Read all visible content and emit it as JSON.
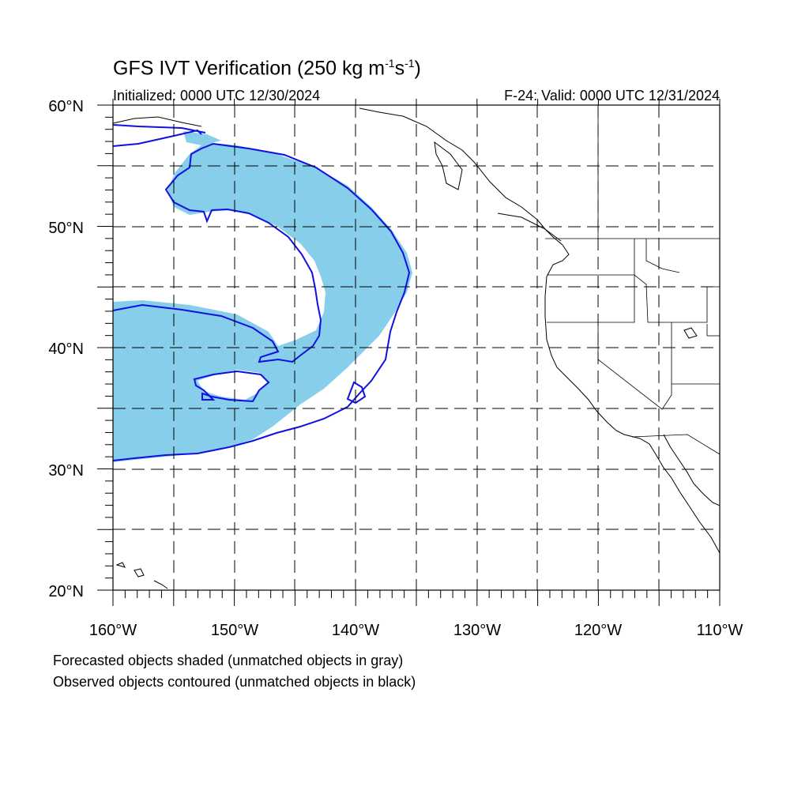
{
  "title": {
    "main": "GFS IVT Verification (250 kg m",
    "exp1": "-1",
    "mid": "s",
    "exp2": "-1",
    "end": ")"
  },
  "initialized": "Initialized: 0000 UTC 12/30/2024",
  "valid": "F-24: Valid: 0000 UTC 12/31/2024",
  "captions": [
    "Forecasted objects shaded (unmatched objects in gray)",
    "Observed objects contoured (unmatched objects in black)"
  ],
  "map": {
    "lon_range": [
      -160,
      -110
    ],
    "lat_range": [
      20,
      60
    ],
    "lat_labels": [
      "20°N",
      "30°N",
      "40°N",
      "50°N",
      "60°N"
    ],
    "lon_labels": [
      "160°W",
      "150°W",
      "140°W",
      "130°W",
      "120°W",
      "110°W"
    ],
    "forecast_fill": "#87CEEB",
    "observed_contour": "#0000EE",
    "grid_dashed": true
  }
}
